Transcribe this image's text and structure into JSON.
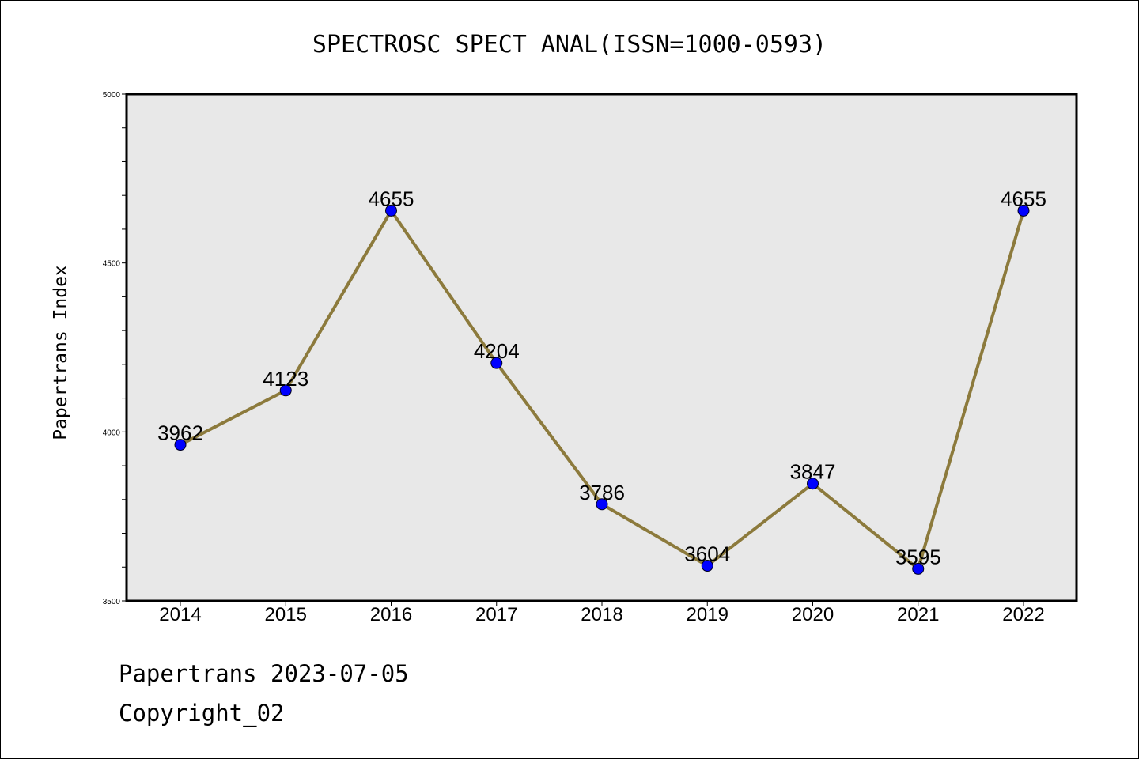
{
  "chart_data": {
    "type": "line",
    "title": "SPECTROSC SPECT ANAL(ISSN=1000-0593)",
    "xlabel": "",
    "ylabel": "Papertrans Index",
    "categories": [
      "2014",
      "2015",
      "2016",
      "2017",
      "2018",
      "2019",
      "2020",
      "2021",
      "2022"
    ],
    "values": [
      3962,
      4123,
      4655,
      4204,
      3786,
      3604,
      3847,
      3595,
      4655
    ],
    "data_labels": [
      "3962",
      "4123",
      "4655",
      "4204",
      "3786",
      "3604",
      "3847",
      "3595",
      "4655"
    ],
    "ylim": [
      3500,
      5000
    ],
    "yticks": [
      "3500",
      "4000",
      "4500",
      "5000"
    ],
    "grid": false,
    "legend": "none",
    "colors": {
      "line": "#8c7a3c",
      "marker": "#0000ff",
      "plot_background": "#e8e8e8"
    }
  },
  "footer": {
    "line1": "Papertrans 2023-07-05",
    "line2": "Copyright_02"
  }
}
